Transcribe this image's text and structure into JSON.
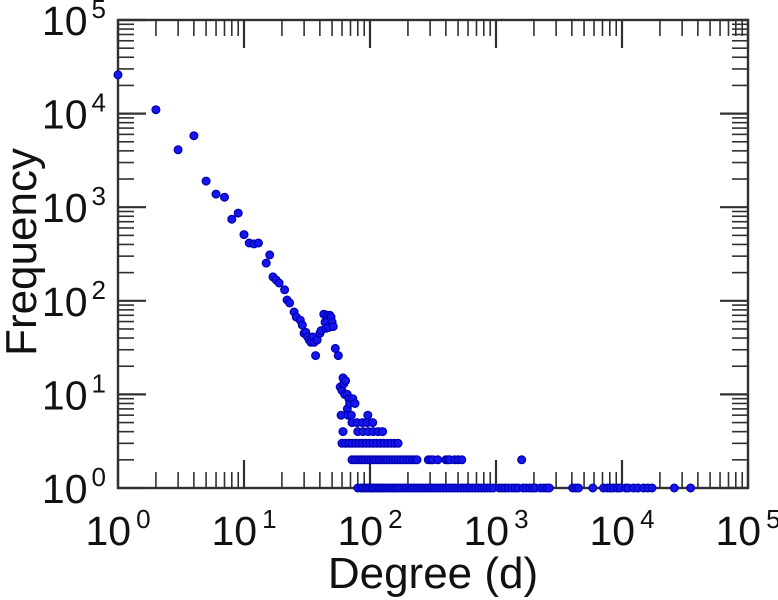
{
  "figure": {
    "background": "#ffffff"
  },
  "chart_data": {
    "type": "scatter",
    "title": "",
    "xlabel": "Degree (d)",
    "ylabel": "Frequency",
    "x_scale": "log",
    "y_scale": "log",
    "xlim": [
      1,
      100000
    ],
    "ylim": [
      1,
      100000
    ],
    "x_tick_exponents": [
      0,
      1,
      2,
      3,
      4,
      5
    ],
    "y_tick_exponents": [
      0,
      1,
      2,
      3,
      4,
      5
    ],
    "tick_label_base": "10",
    "grid": false,
    "legend": false,
    "axis_color": "#303030",
    "text_color": "#111111",
    "marker": {
      "shape": "circle",
      "fill": "#1515ee",
      "stroke": "#0000b0",
      "radius": 3.9
    },
    "points": [
      [
        1,
        26000
      ],
      [
        2,
        11000
      ],
      [
        3,
        4100
      ],
      [
        4,
        5800
      ],
      [
        5,
        1900
      ],
      [
        6,
        1380
      ],
      [
        7,
        1280
      ],
      [
        8,
        745
      ],
      [
        9,
        865
      ],
      [
        10,
        510
      ],
      [
        11,
        415
      ],
      [
        12,
        405
      ],
      [
        13,
        415
      ],
      [
        15,
        253
      ],
      [
        16,
        309
      ],
      [
        17,
        180
      ],
      [
        18,
        167
      ],
      [
        19,
        155
      ],
      [
        21,
        131
      ],
      [
        22,
        102
      ],
      [
        23,
        95
      ],
      [
        25,
        76
      ],
      [
        26,
        67
      ],
      [
        28,
        62
      ],
      [
        29,
        55
      ],
      [
        30,
        45
      ],
      [
        31,
        46
      ],
      [
        32,
        41
      ],
      [
        33,
        38
      ],
      [
        34,
        36
      ],
      [
        35,
        41
      ],
      [
        36,
        36
      ],
      [
        37,
        26
      ],
      [
        38,
        38
      ],
      [
        40,
        45
      ],
      [
        41,
        48
      ],
      [
        43,
        72
      ],
      [
        44,
        59
      ],
      [
        45,
        51
      ],
      [
        46,
        70
      ],
      [
        47,
        52
      ],
      [
        48,
        70
      ],
      [
        49,
        67
      ],
      [
        50,
        59
      ],
      [
        51,
        53
      ],
      [
        53,
        31
      ],
      [
        56,
        26
      ],
      [
        58,
        12
      ],
      [
        59,
        6
      ],
      [
        60,
        11
      ],
      [
        61,
        15
      ],
      [
        62,
        13
      ],
      [
        63,
        10
      ],
      [
        64,
        14
      ],
      [
        66,
        10
      ],
      [
        66,
        7
      ],
      [
        67,
        6
      ],
      [
        68,
        9
      ],
      [
        69,
        8
      ],
      [
        71,
        6
      ],
      [
        73,
        9
      ],
      [
        76,
        8
      ],
      [
        96,
        6
      ],
      [
        72,
        5
      ],
      [
        79,
        5
      ],
      [
        87,
        5
      ],
      [
        95,
        5
      ],
      [
        105,
        5
      ],
      [
        61,
        4
      ],
      [
        80,
        4
      ],
      [
        88,
        4
      ],
      [
        97,
        4
      ],
      [
        106,
        4
      ],
      [
        116,
        4
      ],
      [
        126,
        4
      ],
      [
        60,
        3
      ],
      [
        64,
        3
      ],
      [
        68,
        3
      ],
      [
        72,
        3
      ],
      [
        77,
        3
      ],
      [
        82,
        3
      ],
      [
        87,
        3
      ],
      [
        93,
        3
      ],
      [
        99,
        3
      ],
      [
        106,
        3
      ],
      [
        113,
        3
      ],
      [
        121,
        3
      ],
      [
        129,
        3
      ],
      [
        138,
        3
      ],
      [
        147,
        3
      ],
      [
        157,
        3
      ],
      [
        167,
        3
      ],
      [
        72,
        2
      ],
      [
        76,
        2
      ],
      [
        80,
        2
      ],
      [
        84,
        2
      ],
      [
        88,
        2
      ],
      [
        92,
        2
      ],
      [
        97,
        2
      ],
      [
        102,
        2
      ],
      [
        107,
        2
      ],
      [
        112,
        2
      ],
      [
        118,
        2
      ],
      [
        124,
        2
      ],
      [
        130,
        2
      ],
      [
        137,
        2
      ],
      [
        144,
        2
      ],
      [
        151,
        2
      ],
      [
        159,
        2
      ],
      [
        167,
        2
      ],
      [
        176,
        2
      ],
      [
        185,
        2
      ],
      [
        196,
        2
      ],
      [
        206,
        2
      ],
      [
        217,
        2
      ],
      [
        228,
        2
      ],
      [
        236,
        2
      ],
      [
        290,
        2
      ],
      [
        305,
        2
      ],
      [
        316,
        2
      ],
      [
        345,
        2
      ],
      [
        400,
        2
      ],
      [
        415,
        2
      ],
      [
        430,
        2
      ],
      [
        470,
        2
      ],
      [
        500,
        2
      ],
      [
        535,
        2
      ],
      [
        1600,
        2
      ],
      [
        80,
        1
      ],
      [
        85,
        1
      ],
      [
        88,
        1
      ],
      [
        92,
        1
      ],
      [
        96,
        1
      ],
      [
        100,
        1
      ],
      [
        104,
        1
      ],
      [
        108,
        1
      ],
      [
        113,
        1
      ],
      [
        118,
        1
      ],
      [
        123,
        1
      ],
      [
        128,
        1
      ],
      [
        134,
        1
      ],
      [
        140,
        1
      ],
      [
        147,
        1
      ],
      [
        154,
        1
      ],
      [
        161,
        1
      ],
      [
        169,
        1
      ],
      [
        177,
        1
      ],
      [
        186,
        1
      ],
      [
        195,
        1
      ],
      [
        205,
        1
      ],
      [
        215,
        1
      ],
      [
        226,
        1
      ],
      [
        238,
        1
      ],
      [
        250,
        1
      ],
      [
        263,
        1
      ],
      [
        277,
        1
      ],
      [
        292,
        1
      ],
      [
        308,
        1
      ],
      [
        325,
        1
      ],
      [
        343,
        1
      ],
      [
        362,
        1
      ],
      [
        382,
        1
      ],
      [
        403,
        1
      ],
      [
        425,
        1
      ],
      [
        449,
        1
      ],
      [
        474,
        1
      ],
      [
        500,
        1
      ],
      [
        528,
        1
      ],
      [
        557,
        1
      ],
      [
        588,
        1
      ],
      [
        620,
        1
      ],
      [
        655,
        1
      ],
      [
        690,
        1
      ],
      [
        728,
        1
      ],
      [
        768,
        1
      ],
      [
        810,
        1
      ],
      [
        855,
        1
      ],
      [
        900,
        1
      ],
      [
        950,
        1
      ],
      [
        1060,
        1
      ],
      [
        1120,
        1
      ],
      [
        1180,
        1
      ],
      [
        1250,
        1
      ],
      [
        1340,
        1
      ],
      [
        1420,
        1
      ],
      [
        1500,
        1
      ],
      [
        1640,
        1
      ],
      [
        1740,
        1
      ],
      [
        1850,
        1
      ],
      [
        1950,
        1
      ],
      [
        2060,
        1
      ],
      [
        2260,
        1
      ],
      [
        2400,
        1
      ],
      [
        2540,
        1
      ],
      [
        2650,
        1
      ],
      [
        4060,
        1
      ],
      [
        4300,
        1
      ],
      [
        4520,
        1
      ],
      [
        5870,
        1
      ],
      [
        7130,
        1
      ],
      [
        7680,
        1
      ],
      [
        8100,
        1
      ],
      [
        8550,
        1
      ],
      [
        9200,
        1
      ],
      [
        9700,
        1
      ],
      [
        10700,
        1
      ],
      [
        11200,
        1
      ],
      [
        12300,
        1
      ],
      [
        13400,
        1
      ],
      [
        14800,
        1
      ],
      [
        16000,
        1
      ],
      [
        17300,
        1
      ],
      [
        26000,
        1
      ],
      [
        35000,
        1
      ]
    ]
  }
}
